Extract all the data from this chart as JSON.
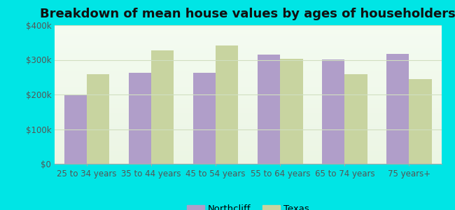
{
  "title": "Breakdown of mean house values by ages of householders",
  "categories": [
    "25 to 34 years",
    "35 to 44 years",
    "45 to 54 years",
    "55 to 64 years",
    "65 to 74 years",
    "75 years+"
  ],
  "northcliff_values": [
    200000,
    263000,
    263000,
    315000,
    302000,
    318000
  ],
  "texas_values": [
    258000,
    328000,
    342000,
    303000,
    258000,
    245000
  ],
  "northcliff_color": "#b09ec9",
  "texas_color": "#c8d4a0",
  "background_outer": "#00e5e5",
  "background_inner_top": "#eaf5e2",
  "background_inner_bottom": "#f5faf0",
  "ylim": [
    0,
    400000
  ],
  "yticks": [
    0,
    100000,
    200000,
    300000,
    400000
  ],
  "ytick_labels": [
    "$0",
    "$100k",
    "$200k",
    "$300k",
    "$400k"
  ],
  "legend_northcliff": "Northcliff",
  "legend_texas": "Texas",
  "bar_width": 0.35,
  "title_fontsize": 13,
  "tick_fontsize": 8.5,
  "legend_fontsize": 9.5,
  "grid_color": "#d0dfc0"
}
